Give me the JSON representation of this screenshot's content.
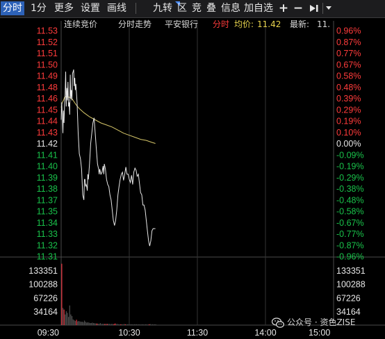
{
  "toolbar": {
    "tab_intraday": "分时",
    "tab_1min": "1分",
    "more": "更多",
    "settings": "设置",
    "draw": "画线",
    "jiuzhuan": "九转",
    "zone": "区",
    "bid": "竞",
    "overlay": "叠",
    "info": "信息",
    "add_watchlist": "加自选",
    "icons": [
      "plus-icon",
      "minus-icon",
      "step-forward-icon",
      "dropdown-arrow-icon"
    ]
  },
  "header": {
    "auction": "连续竞价",
    "title": "分时走势",
    "stock_name": "平安银行",
    "period": "分时",
    "avg_label": "均价:",
    "avg_value": "11.42",
    "latest_label": "最新:",
    "latest_value": "11."
  },
  "colors": {
    "up": "#ff3b3b",
    "down": "#19c24a",
    "flat": "#e6e6e6",
    "price_line": "#e8e8e8",
    "avg_line": "#d8c86a",
    "volume_up": "#e0323c",
    "volume_down": "#4a4a4a",
    "grid": "#333333",
    "avg_value_color": "#e8d44d"
  },
  "watermark": {
    "text": "公众号 · 资色ZISE",
    "icon": "wechat-icon"
  },
  "chart_data": {
    "type": "line",
    "prev_close": 11.42,
    "price_ticks": [
      "11.53",
      "11.52",
      "11.51",
      "11.50",
      "11.49",
      "11.48",
      "11.46",
      "11.45",
      "11.44",
      "11.43",
      "11.42",
      "11.41",
      "11.40",
      "11.39",
      "11.38",
      "11.37",
      "11.35",
      "11.34",
      "11.33",
      "11.32",
      "11.31"
    ],
    "pct_ticks": [
      "0.96%",
      "0.87%",
      "0.77%",
      "0.67%",
      "0.58%",
      "0.48%",
      "0.39%",
      "0.29%",
      "0.19%",
      "0.10%",
      "0.00%",
      "-0.09%",
      "-0.19%",
      "-0.29%",
      "-0.38%",
      "-0.48%",
      "-0.58%",
      "-0.67%",
      "-0.77%",
      "-0.87%",
      "-0.96%"
    ],
    "volume_ticks": [
      "133351",
      "100288",
      "67226",
      "34164"
    ],
    "volume_max": 166413,
    "time_ticks": [
      "09:30",
      "10:30",
      "11:30",
      "14:00",
      "15:00"
    ],
    "total_minutes": 240,
    "price_min": 11.31,
    "price_max": 11.53,
    "price_series": [
      [
        0,
        11.443
      ],
      [
        0.5,
        11.46
      ],
      [
        1,
        11.448
      ],
      [
        1.5,
        11.43
      ],
      [
        2,
        11.452
      ],
      [
        2.5,
        11.44
      ],
      [
        3,
        11.458
      ],
      [
        3.5,
        11.468
      ],
      [
        4,
        11.49
      ],
      [
        4.5,
        11.456
      ],
      [
        5,
        11.474
      ],
      [
        5.5,
        11.462
      ],
      [
        6,
        11.48
      ],
      [
        6.5,
        11.456
      ],
      [
        7,
        11.46
      ],
      [
        7.5,
        11.448
      ],
      [
        8,
        11.487
      ],
      [
        8.5,
        11.464
      ],
      [
        9,
        11.472
      ],
      [
        9.5,
        11.462
      ],
      [
        10,
        11.488
      ],
      [
        10.5,
        11.49
      ],
      [
        11,
        11.492
      ],
      [
        11.5,
        11.476
      ],
      [
        12,
        11.484
      ],
      [
        12.5,
        11.472
      ],
      [
        13,
        11.478
      ],
      [
        14,
        11.46
      ],
      [
        15,
        11.43
      ],
      [
        16,
        11.41
      ],
      [
        17,
        11.405
      ],
      [
        17.5,
        11.4
      ],
      [
        18,
        11.395
      ],
      [
        19,
        11.37
      ],
      [
        20,
        11.365
      ],
      [
        20.5,
        11.385
      ],
      [
        21,
        11.385
      ],
      [
        21.5,
        11.378
      ],
      [
        22,
        11.38
      ],
      [
        22.5,
        11.378
      ],
      [
        23,
        11.374
      ],
      [
        23.5,
        11.39
      ],
      [
        24,
        11.385
      ],
      [
        25,
        11.4
      ],
      [
        26,
        11.42
      ],
      [
        27,
        11.43
      ],
      [
        28,
        11.44
      ],
      [
        29,
        11.445
      ],
      [
        30,
        11.43
      ],
      [
        31,
        11.415
      ],
      [
        32,
        11.4
      ],
      [
        33,
        11.395
      ],
      [
        33.5,
        11.39
      ],
      [
        34,
        11.395
      ],
      [
        35,
        11.39
      ],
      [
        36,
        11.392
      ],
      [
        37,
        11.398
      ],
      [
        37.5,
        11.39
      ],
      [
        38,
        11.4
      ],
      [
        39,
        11.395
      ],
      [
        40,
        11.385
      ],
      [
        41,
        11.38
      ],
      [
        42,
        11.378
      ],
      [
        43,
        11.37
      ],
      [
        44,
        11.365
      ],
      [
        45,
        11.355
      ],
      [
        46,
        11.345
      ],
      [
        47,
        11.34
      ],
      [
        48,
        11.345
      ],
      [
        49,
        11.355
      ],
      [
        50,
        11.37
      ],
      [
        51,
        11.378
      ],
      [
        52,
        11.385
      ],
      [
        53,
        11.39
      ],
      [
        54,
        11.392
      ],
      [
        55,
        11.384
      ],
      [
        56,
        11.39
      ],
      [
        57,
        11.397
      ],
      [
        58,
        11.39
      ],
      [
        59,
        11.39
      ],
      [
        60,
        11.385
      ],
      [
        61,
        11.382
      ],
      [
        62,
        11.389
      ],
      [
        63,
        11.38
      ],
      [
        64,
        11.392
      ],
      [
        65,
        11.396
      ],
      [
        66,
        11.394
      ],
      [
        67,
        11.388
      ],
      [
        68,
        11.39
      ],
      [
        69,
        11.381
      ],
      [
        70,
        11.372
      ],
      [
        71,
        11.37
      ],
      [
        72,
        11.36
      ],
      [
        73,
        11.36
      ],
      [
        74,
        11.355
      ],
      [
        75,
        11.345
      ],
      [
        76,
        11.335
      ],
      [
        77,
        11.325
      ],
      [
        78,
        11.32
      ],
      [
        79,
        11.325
      ],
      [
        80,
        11.335
      ],
      [
        81,
        11.337
      ],
      [
        82,
        11.337
      ],
      [
        83,
        11.337
      ]
    ],
    "avg_series": [
      [
        0,
        11.455
      ],
      [
        1,
        11.46
      ],
      [
        2,
        11.462
      ],
      [
        3,
        11.465
      ],
      [
        5,
        11.466
      ],
      [
        7,
        11.465
      ],
      [
        10,
        11.463
      ],
      [
        13,
        11.458
      ],
      [
        16,
        11.454
      ],
      [
        20,
        11.45
      ],
      [
        25,
        11.446
      ],
      [
        30,
        11.443
      ],
      [
        35,
        11.44
      ],
      [
        40,
        11.438
      ],
      [
        45,
        11.436
      ],
      [
        50,
        11.433
      ],
      [
        55,
        11.43
      ],
      [
        60,
        11.428
      ],
      [
        65,
        11.426
      ],
      [
        70,
        11.424
      ],
      [
        75,
        11.423
      ],
      [
        80,
        11.421
      ],
      [
        83,
        11.42
      ]
    ],
    "volume_series": [
      [
        0,
        150000,
        "up"
      ],
      [
        1,
        42000,
        "down"
      ],
      [
        2,
        38000,
        "up"
      ],
      [
        3,
        26000,
        "down"
      ],
      [
        4,
        34000,
        "down"
      ],
      [
        5,
        30000,
        "down"
      ],
      [
        6,
        20000,
        "down"
      ],
      [
        7,
        48000,
        "down"
      ],
      [
        8,
        26000,
        "down"
      ],
      [
        9,
        22000,
        "down"
      ],
      [
        10,
        14000,
        "down"
      ],
      [
        11,
        12000,
        "down"
      ],
      [
        12,
        10000,
        "down"
      ],
      [
        13,
        13000,
        "up"
      ],
      [
        14,
        9000,
        "down"
      ],
      [
        15,
        10000,
        "down"
      ],
      [
        16,
        9000,
        "down"
      ],
      [
        17,
        8000,
        "down"
      ],
      [
        18,
        8500,
        "down"
      ],
      [
        19,
        7000,
        "down"
      ],
      [
        20,
        11000,
        "down"
      ],
      [
        21,
        8000,
        "down"
      ],
      [
        22,
        6000,
        "down"
      ],
      [
        23,
        7000,
        "down"
      ],
      [
        24,
        6000,
        "down"
      ],
      [
        25,
        5000,
        "down"
      ],
      [
        26,
        5000,
        "down"
      ],
      [
        27,
        6000,
        "down"
      ],
      [
        28,
        5000,
        "down"
      ],
      [
        29,
        4500,
        "down"
      ],
      [
        30,
        4000,
        "down"
      ],
      [
        31,
        4000,
        "up"
      ],
      [
        32,
        3500,
        "down"
      ],
      [
        33,
        3000,
        "down"
      ],
      [
        34,
        5000,
        "down"
      ],
      [
        35,
        3000,
        "down"
      ],
      [
        36,
        3000,
        "down"
      ],
      [
        37,
        3000,
        "down"
      ],
      [
        38,
        3000,
        "up"
      ],
      [
        39,
        3000,
        "down"
      ],
      [
        40,
        3000,
        "up"
      ],
      [
        41,
        3000,
        "down"
      ],
      [
        42,
        3000,
        "down"
      ],
      [
        43,
        2500,
        "down"
      ],
      [
        44,
        3000,
        "down"
      ],
      [
        45,
        2500,
        "down"
      ],
      [
        46,
        2500,
        "up"
      ],
      [
        47,
        4000,
        "up"
      ],
      [
        48,
        2500,
        "down"
      ],
      [
        49,
        3000,
        "down"
      ],
      [
        50,
        2000,
        "down"
      ],
      [
        51,
        2000,
        "down"
      ],
      [
        52,
        2000,
        "up"
      ],
      [
        53,
        2000,
        "down"
      ],
      [
        54,
        2000,
        "down"
      ],
      [
        55,
        2500,
        "down"
      ],
      [
        56,
        2000,
        "up"
      ],
      [
        57,
        2000,
        "down"
      ],
      [
        58,
        2000,
        "down"
      ],
      [
        59,
        2000,
        "down"
      ],
      [
        60,
        1500,
        "down"
      ],
      [
        61,
        2000,
        "down"
      ],
      [
        62,
        2000,
        "down"
      ],
      [
        63,
        1500,
        "down"
      ],
      [
        64,
        2000,
        "down"
      ],
      [
        65,
        2000,
        "down"
      ],
      [
        66,
        2000,
        "down"
      ],
      [
        67,
        1500,
        "down"
      ],
      [
        68,
        2000,
        "down"
      ],
      [
        69,
        1500,
        "down"
      ],
      [
        70,
        1500,
        "down"
      ],
      [
        71,
        2000,
        "down"
      ],
      [
        72,
        1500,
        "down"
      ],
      [
        73,
        1500,
        "down"
      ],
      [
        74,
        2000,
        "down"
      ],
      [
        75,
        1500,
        "down"
      ],
      [
        76,
        1500,
        "down"
      ],
      [
        77,
        2000,
        "up"
      ],
      [
        78,
        2500,
        "down"
      ],
      [
        79,
        1500,
        "down"
      ],
      [
        80,
        2000,
        "down"
      ],
      [
        81,
        1500,
        "down"
      ],
      [
        82,
        2000,
        "down"
      ],
      [
        83,
        1500,
        "down"
      ]
    ]
  }
}
